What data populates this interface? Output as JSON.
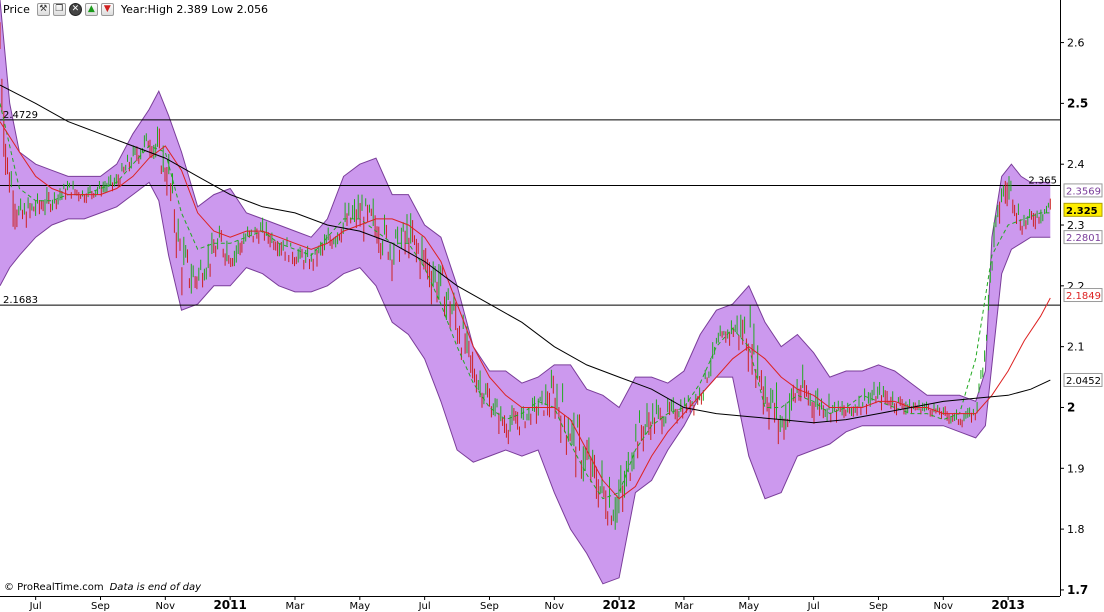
{
  "toolbar": {
    "title": "Price",
    "stats": "Year:High 2.389 Low 2.056",
    "icons": [
      "wrench-icon",
      "window-icon",
      "close-icon",
      "arrow-up-icon",
      "arrow-down-icon"
    ]
  },
  "footer": {
    "brand": "© ProRealTime.com",
    "note": "Data is end of day"
  },
  "colors": {
    "band_fill": "#cc99ee",
    "band_edge": "#7a3d9a",
    "bar_up": "#22aa22",
    "bar_down": "#cc2222",
    "ma_black": "#000000",
    "ma_red": "#dd2222",
    "ma_green_dash": "#22aa22",
    "current_price_bg": "#ffee00"
  },
  "chart_data": {
    "type": "line",
    "y_ticks": [
      "2.6",
      "2.5",
      "2.4",
      "2.3",
      "2.2",
      "2.1",
      "2",
      "1.9",
      "1.8",
      "1.7"
    ],
    "y_tick_values": [
      2.6,
      2.5,
      2.4,
      2.3,
      2.2,
      2.1,
      2.0,
      1.9,
      1.8,
      1.7
    ],
    "bold_ticks": [
      "2.5",
      "2",
      "1.7"
    ],
    "ylim": [
      1.69,
      2.67
    ],
    "x_ticks": [
      "Jul",
      "Sep",
      "Nov",
      "2011",
      "Mar",
      "May",
      "Jul",
      "Sep",
      "Nov",
      "2012",
      "Mar",
      "May",
      "Jul",
      "Sep",
      "Nov",
      "2013"
    ],
    "x_tick_values": [
      0.5,
      2.5,
      4.5,
      6.5,
      8.5,
      10.5,
      12.5,
      14.5,
      16.5,
      18.5,
      20.5,
      22.5,
      24.5,
      26.5,
      28.5,
      30.5
    ],
    "bold_x_ticks": [
      "2011",
      "2012",
      "2013"
    ],
    "xlim": [
      -0.6,
      32.1
    ],
    "horizontal_lines": [
      {
        "value": 2.4729,
        "label": "2.4729",
        "label_side": "left"
      },
      {
        "value": 2.365,
        "label": "2.365",
        "label_side": "right"
      },
      {
        "value": 2.1683,
        "label": "2.1683",
        "label_side": "left"
      }
    ],
    "right_labels": [
      {
        "value": 2.3569,
        "label": "2.3569",
        "color": "#7a3d9a",
        "highlight": false
      },
      {
        "value": 2.325,
        "label": "2.325",
        "color": "#000000",
        "highlight": true
      },
      {
        "value": 2.2801,
        "label": "2.2801",
        "color": "#7a3d9a",
        "highlight": false
      },
      {
        "value": 2.1849,
        "label": "2.1849",
        "color": "#dd2222",
        "highlight": false
      },
      {
        "value": 2.0452,
        "label": "2.0452",
        "color": "#000000",
        "highlight": false
      }
    ],
    "price_series": {
      "x": [
        -0.6,
        -0.4,
        0,
        0.5,
        1,
        1.5,
        2,
        2.5,
        3,
        3.5,
        4,
        4.3,
        4.6,
        5,
        5.4,
        5.8,
        6.2,
        6.6,
        7,
        7.5,
        8,
        8.5,
        9,
        9.5,
        10,
        10.5,
        11,
        11.5,
        12,
        12.5,
        13,
        13.5,
        14,
        14.5,
        15,
        15.5,
        16,
        16.5,
        17,
        17.5,
        18,
        18.3,
        18.6,
        19,
        19.5,
        20,
        20.5,
        21,
        21.5,
        22,
        22.5,
        23,
        23.5,
        24,
        24.5,
        25,
        25.5,
        26,
        26.5,
        27,
        27.5,
        28,
        28.5,
        29,
        29.5,
        29.8,
        30,
        30.3,
        30.6,
        30.9,
        31.2,
        31.5,
        31.8
      ],
      "y": [
        2.6,
        2.4,
        2.31,
        2.33,
        2.34,
        2.36,
        2.35,
        2.36,
        2.37,
        2.41,
        2.44,
        2.42,
        2.38,
        2.24,
        2.21,
        2.24,
        2.27,
        2.25,
        2.28,
        2.29,
        2.27,
        2.25,
        2.24,
        2.27,
        2.3,
        2.32,
        2.3,
        2.26,
        2.28,
        2.24,
        2.2,
        2.14,
        2.06,
        2.01,
        1.97,
        1.98,
        2.0,
        2.02,
        1.96,
        1.91,
        1.86,
        1.84,
        1.85,
        1.95,
        1.98,
        1.99,
        2.0,
        2.02,
        2.1,
        2.13,
        2.12,
        2.03,
        1.97,
        2.03,
        2.01,
        2.0,
        1.99,
        2.01,
        2.02,
        2.01,
        2.0,
        2.0,
        1.99,
        1.98,
        1.99,
        2.1,
        2.25,
        2.35,
        2.36,
        2.3,
        2.31,
        2.32,
        2.33
      ]
    },
    "bollinger_upper": {
      "x": [
        -0.6,
        -0.3,
        0,
        0.5,
        1,
        1.5,
        2,
        2.5,
        3,
        3.5,
        4,
        4.3,
        4.6,
        5,
        5.5,
        6,
        6.5,
        7,
        7.5,
        8,
        8.5,
        9,
        9.5,
        10,
        10.5,
        11,
        11.5,
        12,
        12.5,
        13,
        13.5,
        14,
        14.5,
        15,
        15.5,
        16,
        16.5,
        17,
        17.5,
        18,
        18.5,
        19,
        19.5,
        20,
        20.5,
        21,
        21.5,
        22,
        22.5,
        23,
        23.5,
        24,
        24.5,
        25,
        25.5,
        26,
        26.5,
        27,
        27.5,
        28,
        28.5,
        29,
        29.5,
        29.8,
        30,
        30.3,
        30.6,
        30.9,
        31.2,
        31.5,
        31.8
      ],
      "y": [
        2.67,
        2.5,
        2.42,
        2.4,
        2.39,
        2.38,
        2.38,
        2.38,
        2.4,
        2.45,
        2.49,
        2.52,
        2.48,
        2.42,
        2.33,
        2.35,
        2.36,
        2.32,
        2.31,
        2.3,
        2.29,
        2.28,
        2.31,
        2.38,
        2.4,
        2.41,
        2.35,
        2.35,
        2.3,
        2.28,
        2.2,
        2.1,
        2.06,
        2.06,
        2.04,
        2.05,
        2.07,
        2.07,
        2.03,
        2.02,
        2.0,
        2.05,
        2.05,
        2.04,
        2.06,
        2.12,
        2.16,
        2.17,
        2.2,
        2.14,
        2.1,
        2.12,
        2.09,
        2.05,
        2.06,
        2.06,
        2.07,
        2.06,
        2.04,
        2.02,
        2.02,
        2.02,
        2.01,
        2.06,
        2.28,
        2.38,
        2.4,
        2.38,
        2.37,
        2.37,
        2.37
      ]
    },
    "bollinger_lower": {
      "x": [
        -0.6,
        -0.3,
        0,
        0.5,
        1,
        1.5,
        2,
        2.5,
        3,
        3.5,
        4,
        4.3,
        4.6,
        5,
        5.5,
        6,
        6.5,
        7,
        7.5,
        8,
        8.5,
        9,
        9.5,
        10,
        10.5,
        11,
        11.5,
        12,
        12.5,
        13,
        13.5,
        14,
        14.5,
        15,
        15.5,
        16,
        16.5,
        17,
        17.5,
        18,
        18.5,
        19,
        19.5,
        20,
        20.5,
        21,
        21.5,
        22,
        22.5,
        23,
        23.5,
        24,
        24.5,
        25,
        25.5,
        26,
        26.5,
        27,
        27.5,
        28,
        28.5,
        29,
        29.5,
        29.8,
        30,
        30.3,
        30.6,
        30.9,
        31.2,
        31.5,
        31.8
      ],
      "y": [
        2.2,
        2.23,
        2.25,
        2.28,
        2.3,
        2.31,
        2.31,
        2.32,
        2.33,
        2.35,
        2.37,
        2.34,
        2.25,
        2.16,
        2.17,
        2.2,
        2.2,
        2.23,
        2.22,
        2.2,
        2.19,
        2.19,
        2.2,
        2.22,
        2.23,
        2.2,
        2.14,
        2.12,
        2.08,
        2.01,
        1.93,
        1.91,
        1.92,
        1.93,
        1.92,
        1.93,
        1.86,
        1.8,
        1.76,
        1.71,
        1.72,
        1.86,
        1.88,
        1.93,
        1.97,
        2.02,
        2.05,
        2.05,
        1.92,
        1.85,
        1.86,
        1.92,
        1.93,
        1.94,
        1.96,
        1.97,
        1.97,
        1.97,
        1.97,
        1.97,
        1.97,
        1.96,
        1.95,
        1.97,
        2.07,
        2.22,
        2.26,
        2.27,
        2.28,
        2.28,
        2.28
      ]
    },
    "ma_black": {
      "x": [
        -0.6,
        0.5,
        1.5,
        2.5,
        3.5,
        4.5,
        5.5,
        6.5,
        7.5,
        8.5,
        9.5,
        10.5,
        11.5,
        12.5,
        13.5,
        14.5,
        15.5,
        16.5,
        17.5,
        18.5,
        19.5,
        20.5,
        21.5,
        22.5,
        23.5,
        24.5,
        25.5,
        26.5,
        27.5,
        28.5,
        29.5,
        30.5,
        31.2,
        31.8
      ],
      "y": [
        2.53,
        2.5,
        2.47,
        2.45,
        2.43,
        2.41,
        2.38,
        2.35,
        2.33,
        2.32,
        2.3,
        2.29,
        2.27,
        2.24,
        2.2,
        2.17,
        2.14,
        2.1,
        2.07,
        2.05,
        2.03,
        2.0,
        1.99,
        1.985,
        1.98,
        1.975,
        1.98,
        1.99,
        2.0,
        2.01,
        2.015,
        2.02,
        2.03,
        2.045
      ]
    },
    "ma_red": {
      "x": [
        -0.6,
        0,
        0.5,
        1,
        1.5,
        2,
        2.5,
        3,
        3.5,
        4,
        4.5,
        5,
        5.5,
        6,
        6.5,
        7,
        7.5,
        8,
        8.5,
        9,
        9.5,
        10,
        10.5,
        11,
        11.5,
        12,
        12.5,
        13,
        13.5,
        14,
        14.5,
        15,
        15.5,
        16,
        16.5,
        17,
        17.5,
        18,
        18.5,
        19,
        19.5,
        20,
        20.5,
        21,
        21.5,
        22,
        22.5,
        23,
        23.5,
        24,
        24.5,
        25,
        25.5,
        26,
        26.5,
        27,
        27.5,
        28,
        28.5,
        29,
        29.5,
        30,
        30.5,
        31,
        31.5,
        31.8
      ],
      "y": [
        2.47,
        2.42,
        2.38,
        2.36,
        2.35,
        2.35,
        2.35,
        2.36,
        2.38,
        2.41,
        2.43,
        2.39,
        2.32,
        2.29,
        2.28,
        2.29,
        2.29,
        2.28,
        2.27,
        2.26,
        2.27,
        2.29,
        2.3,
        2.31,
        2.31,
        2.3,
        2.28,
        2.24,
        2.17,
        2.1,
        2.05,
        2.02,
        2.0,
        2.0,
        2.0,
        1.98,
        1.93,
        1.88,
        1.85,
        1.87,
        1.92,
        1.96,
        1.99,
        2.02,
        2.05,
        2.08,
        2.1,
        2.08,
        2.05,
        2.03,
        2.02,
        2.0,
        2.0,
        2.0,
        2.01,
        2.01,
        2.0,
        2.0,
        1.99,
        1.99,
        1.99,
        2.02,
        2.06,
        2.11,
        2.15,
        2.18
      ]
    },
    "ma_green_dash": {
      "x": [
        -0.6,
        0,
        0.5,
        1,
        1.5,
        2,
        2.5,
        3,
        3.5,
        4,
        4.5,
        5,
        5.5,
        6,
        6.5,
        7,
        7.5,
        8,
        8.5,
        9,
        9.5,
        10,
        10.5,
        11,
        11.5,
        12,
        12.5,
        13,
        13.5,
        14,
        14.5,
        15,
        15.5,
        16,
        16.5,
        17,
        17.5,
        18,
        18.5,
        19,
        19.5,
        20,
        20.5,
        21,
        21.5,
        22,
        22.5,
        23,
        23.5,
        24,
        24.5,
        25,
        25.5,
        26,
        26.5,
        27,
        27.5,
        28,
        28.5,
        29,
        29.5,
        30,
        30.5,
        31,
        31.5,
        31.8
      ],
      "y": [
        2.5,
        2.36,
        2.34,
        2.34,
        2.35,
        2.35,
        2.36,
        2.37,
        2.4,
        2.43,
        2.42,
        2.32,
        2.26,
        2.27,
        2.27,
        2.28,
        2.29,
        2.27,
        2.26,
        2.25,
        2.28,
        2.31,
        2.31,
        2.29,
        2.27,
        2.27,
        2.23,
        2.17,
        2.1,
        2.04,
        2.0,
        1.98,
        1.99,
        2.01,
        2.0,
        1.94,
        1.89,
        1.85,
        1.86,
        1.93,
        1.97,
        1.99,
        2.0,
        2.04,
        2.1,
        2.13,
        2.1,
        2.0,
        2.0,
        2.02,
        2.01,
        1.99,
        2.0,
        2.02,
        2.01,
        2.0,
        1.99,
        1.99,
        1.98,
        1.99,
        2.08,
        2.25,
        2.3,
        2.31,
        2.32,
        2.32
      ]
    }
  }
}
